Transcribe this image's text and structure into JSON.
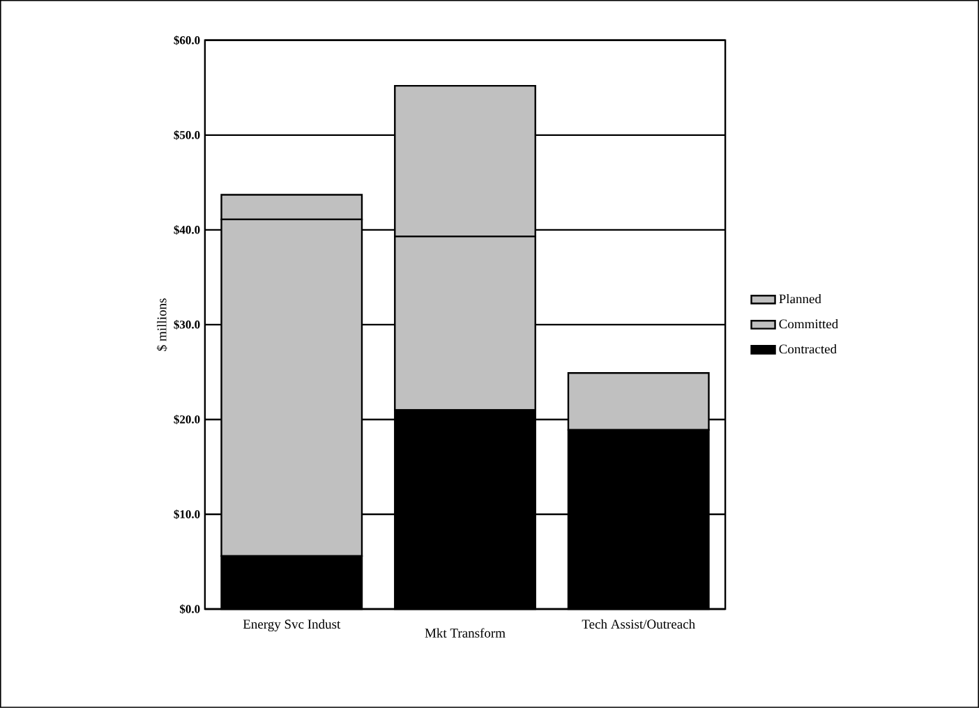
{
  "chart_data": {
    "type": "bar",
    "stacked": true,
    "ylabel": "$ millions",
    "categories": [
      "Energy Svc Indust",
      "Mkt Transform",
      "Tech Assist/Outreach"
    ],
    "series": [
      {
        "name": "Contracted",
        "color": "#000000",
        "values": [
          5.6,
          21.0,
          18.9
        ]
      },
      {
        "name": "Committed",
        "color": "#c0c0c0",
        "values": [
          35.5,
          18.3,
          6.0
        ]
      },
      {
        "name": "Planned",
        "color": "#c0c0c0",
        "values": [
          2.6,
          15.9,
          null
        ]
      }
    ],
    "ylim": [
      0,
      60
    ],
    "yticks": [
      {
        "value": 0,
        "label": "$0.0"
      },
      {
        "value": 10,
        "label": "$10.0"
      },
      {
        "value": 20,
        "label": "$20.0"
      },
      {
        "value": 30,
        "label": "$30.0"
      },
      {
        "value": 40,
        "label": "$40.0"
      },
      {
        "value": 50,
        "label": "$50.0"
      },
      {
        "value": 60,
        "label": "$60.0"
      }
    ],
    "grid": "y",
    "legend": "right"
  }
}
